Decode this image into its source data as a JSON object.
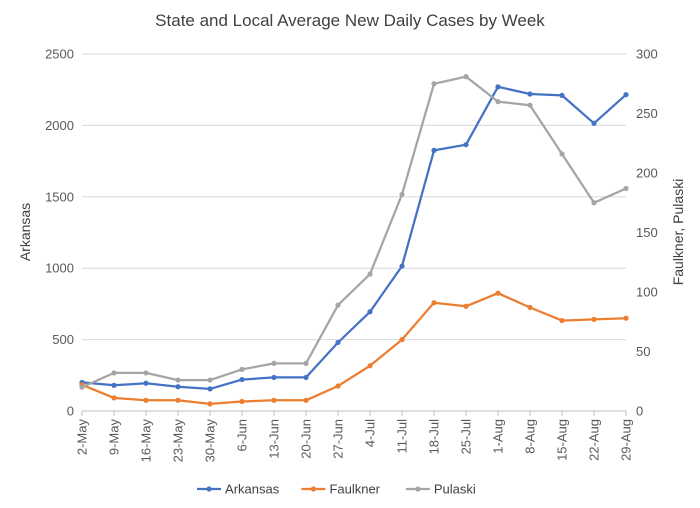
{
  "chart_data": {
    "type": "line",
    "title": "State and Local Average New Daily Cases by Week",
    "ylabel_left": "Arkansas",
    "ylabel_right": "Faulkner, Pulaski",
    "categories": [
      "2-May",
      "9-May",
      "16-May",
      "23-May",
      "30-May",
      "6-Jun",
      "13-Jun",
      "20-Jun",
      "27-Jun",
      "4-Jul",
      "11-Jul",
      "18-Jul",
      "25-Jul",
      "1-Aug",
      "8-Aug",
      "15-Aug",
      "22-Aug",
      "29-Aug"
    ],
    "y_left": {
      "min": 0,
      "max": 2500,
      "ticks": [
        0,
        500,
        1000,
        1500,
        2000,
        2500
      ]
    },
    "y_right": {
      "min": 0,
      "max": 300,
      "ticks": [
        0,
        50,
        100,
        150,
        200,
        250,
        300
      ]
    },
    "grid": true,
    "legend_position": "bottom",
    "series": [
      {
        "name": "Arkansas",
        "axis": "left",
        "color": "#4472C4",
        "values": [
          200,
          180,
          195,
          170,
          155,
          220,
          235,
          235,
          480,
          695,
          1015,
          1825,
          1865,
          2270,
          2220,
          2210,
          2015,
          2215
        ]
      },
      {
        "name": "Faulkner",
        "axis": "right",
        "color": "#ED7D31",
        "values": [
          22,
          11,
          9,
          9,
          6,
          8,
          9,
          9,
          21,
          38,
          60,
          91,
          88,
          99,
          87,
          76,
          77,
          78
        ]
      },
      {
        "name": "Pulaski",
        "axis": "right",
        "color": "#A5A5A5",
        "values": [
          20,
          32,
          32,
          26,
          26,
          35,
          40,
          40,
          89,
          115,
          182,
          275,
          281,
          260,
          257,
          216,
          175,
          187
        ]
      }
    ]
  }
}
